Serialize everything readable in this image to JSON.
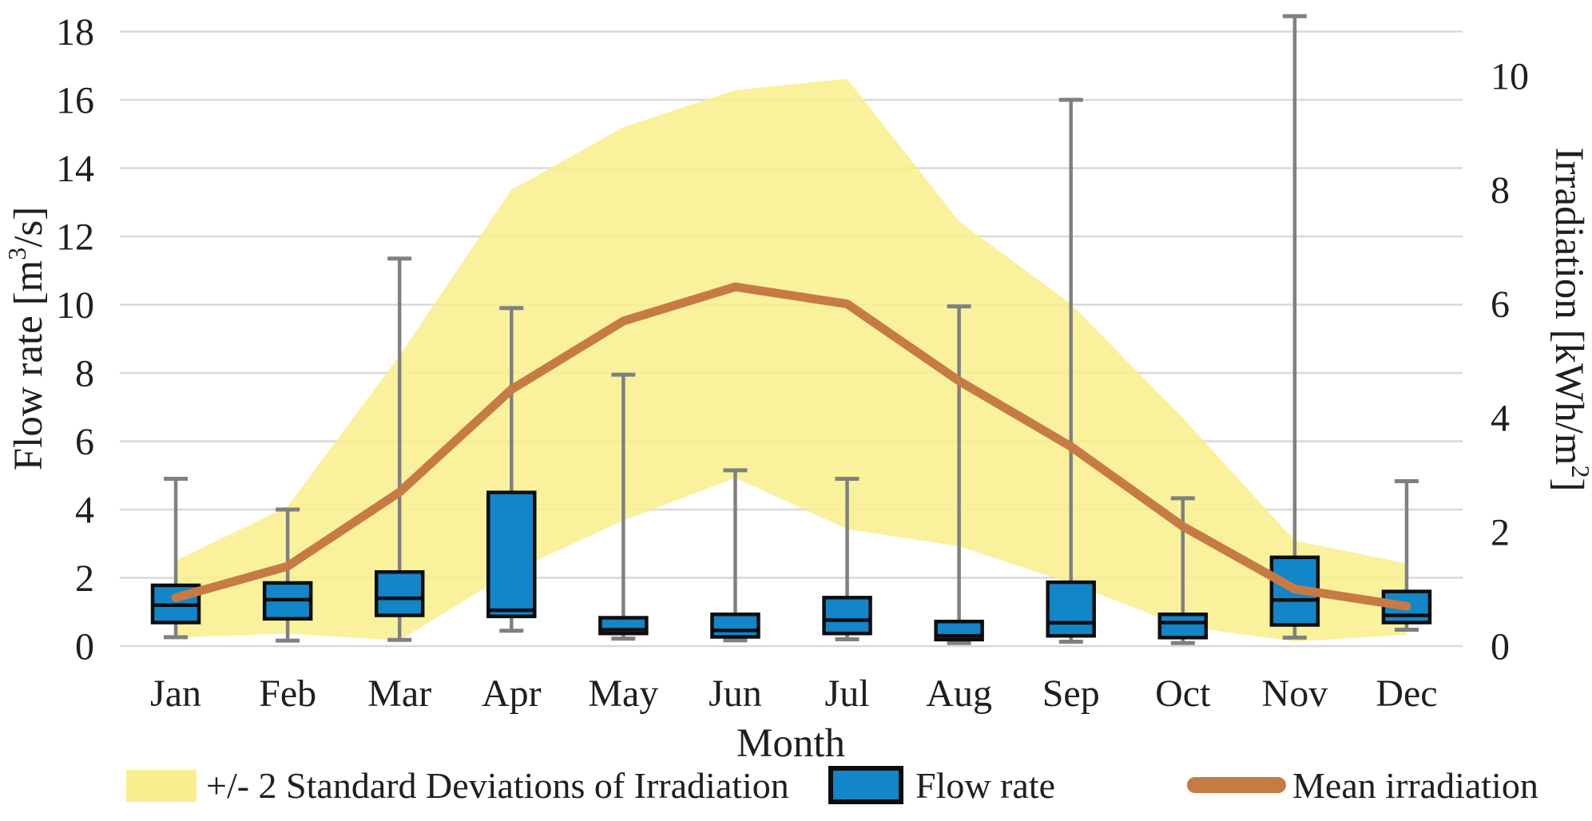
{
  "axes": {
    "x": {
      "title": "Month"
    },
    "y_left": {
      "title_pre": "Flow rate [m",
      "title_sup": "3",
      "title_post": "/s]",
      "range": [
        0,
        18
      ],
      "ticks": [
        0,
        2,
        4,
        6,
        8,
        10,
        12,
        14,
        16,
        18
      ]
    },
    "y_right": {
      "title_pre": "Irradiation [kWh/m",
      "title_sup": "2",
      "title_post": "]",
      "range": [
        0,
        10
      ],
      "ticks": [
        0,
        2,
        4,
        6,
        8,
        10
      ]
    }
  },
  "legend": {
    "band": "+/- 2 Standard Deviations of Irradiation",
    "flow": "Flow rate",
    "mean": "Mean irradiation"
  },
  "colors": {
    "band_fill": "#f9ee8c",
    "box_fill": "#1286c9",
    "box_stroke": "#0d0d0d",
    "mean_line": "#c67b44",
    "whisker": "#808080",
    "gridline": "#d9d9d9",
    "text": "#1f1f1f"
  },
  "chart_data": {
    "type": "combo",
    "categories": [
      "Jan",
      "Feb",
      "Mar",
      "Apr",
      "May",
      "Jun",
      "Jul",
      "Aug",
      "Sep",
      "Oct",
      "Nov",
      "Dec"
    ],
    "grid": true,
    "legend_position": "bottom",
    "y_left_range": [
      0,
      18
    ],
    "y_right_range": [
      0,
      10
    ],
    "series": [
      {
        "name": "+/- 2 Standard Deviations of Irradiation",
        "type": "area-band",
        "axis": "right",
        "upper": [
          1.5,
          2.45,
          5.1,
          8.0,
          9.1,
          9.75,
          9.95,
          7.45,
          6.0,
          4.0,
          1.85,
          1.45
        ],
        "lower": [
          0.15,
          0.22,
          0.1,
          1.3,
          2.2,
          2.95,
          2.05,
          1.75,
          1.1,
          0.35,
          0.08,
          0.2
        ]
      },
      {
        "name": "Flow rate",
        "type": "boxplot",
        "axis": "left",
        "whisker_low": [
          0.26,
          0.16,
          0.18,
          0.45,
          0.22,
          0.17,
          0.2,
          0.09,
          0.13,
          0.09,
          0.25,
          0.48
        ],
        "q1": [
          0.69,
          0.8,
          0.9,
          0.87,
          0.37,
          0.27,
          0.37,
          0.19,
          0.3,
          0.25,
          0.62,
          0.69
        ],
        "median": [
          1.2,
          1.36,
          1.4,
          1.05,
          0.48,
          0.46,
          0.76,
          0.3,
          0.68,
          0.69,
          1.35,
          0.9
        ],
        "q3": [
          1.78,
          1.85,
          2.17,
          4.5,
          0.83,
          0.93,
          1.42,
          0.72,
          1.87,
          0.93,
          2.6,
          1.6
        ],
        "whisker_high": [
          4.9,
          4.0,
          11.35,
          9.9,
          7.95,
          5.15,
          4.9,
          9.95,
          16.0,
          4.33,
          18.45,
          4.83
        ]
      },
      {
        "name": "Mean irradiation",
        "type": "line",
        "axis": "right",
        "values": [
          0.85,
          1.4,
          2.7,
          4.5,
          5.7,
          6.3,
          6.0,
          4.65,
          3.5,
          2.1,
          1.0,
          0.7
        ]
      }
    ]
  }
}
